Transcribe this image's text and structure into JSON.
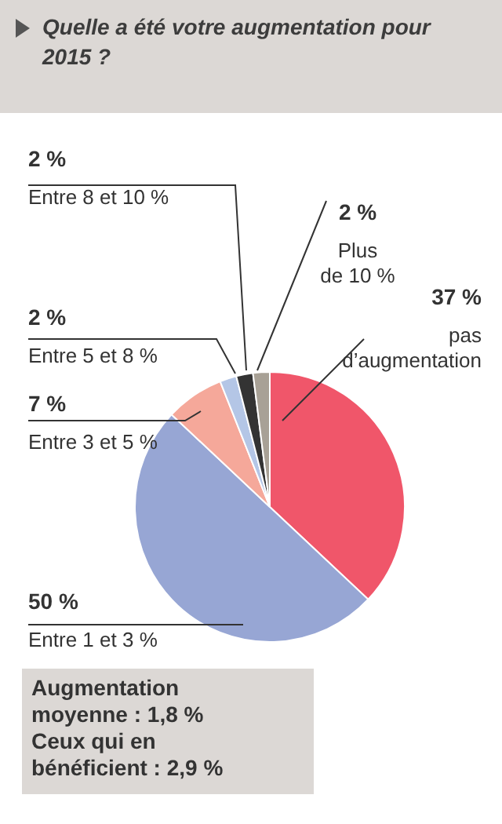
{
  "chart_data": {
    "type": "pie",
    "title": "Quelle a été votre augmentation pour 2015 ?",
    "categories": [
      "pas d’augmentation",
      "Entre 1 et 3 %",
      "Entre 3 et 5 %",
      "Entre 5 et 8 %",
      "Entre 8 et 10 %",
      "Plus de 10 %"
    ],
    "values": [
      37,
      50,
      7,
      2,
      2,
      2
    ],
    "value_labels": [
      "37 %",
      "50 %",
      "7 %",
      "2 %",
      "2 %",
      "2 %"
    ],
    "colors": [
      "#f0566a",
      "#97a6d4",
      "#f5a89a",
      "#b4c6e6",
      "#333333",
      "#a8a196"
    ],
    "annotations": [
      "Augmentation moyenne : 1,8 %",
      "Ceux qui en bénéficient : 2,9 %"
    ]
  }
}
